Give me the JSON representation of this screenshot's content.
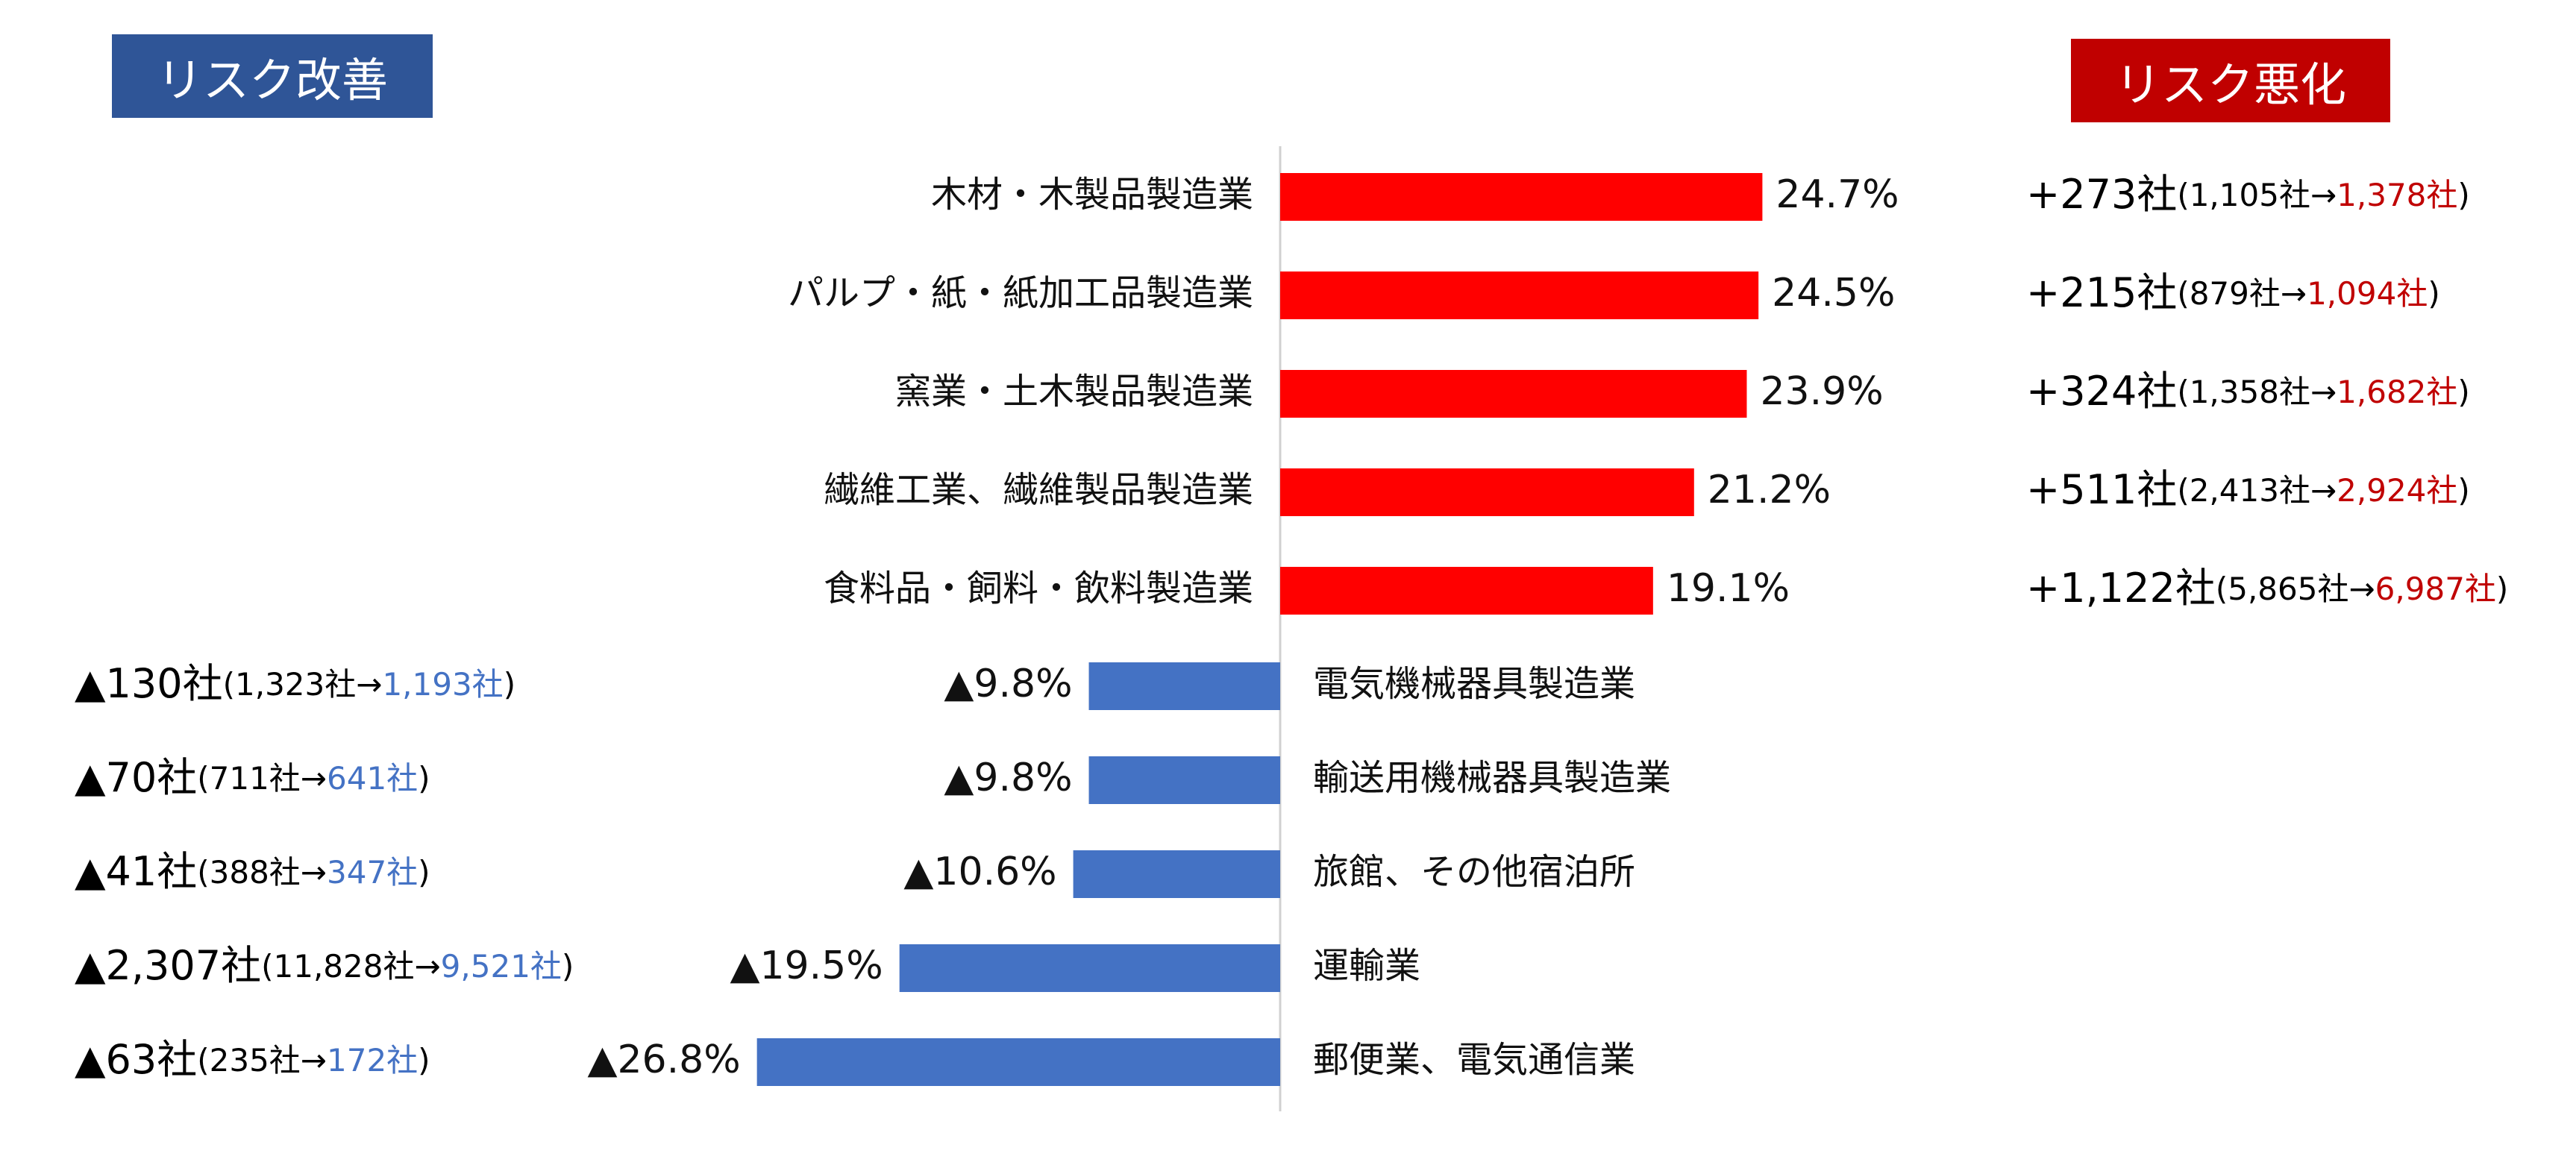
{
  "colors": {
    "worse": "#FF0000",
    "better": "#4472C4",
    "badge_worse": "#C00000",
    "badge_better": "#2F5597",
    "worse_text": "#C00000",
    "better_text": "#4472C4"
  },
  "badges": {
    "left": "リスク改善",
    "right": "リスク悪化"
  },
  "chart_data": {
    "type": "bar",
    "orientation": "horizontal-diverging",
    "unit": "%",
    "series": [
      {
        "name": "リスク悪化",
        "categories": [
          "木材・木製品製造業",
          "パルプ・紙・紙加工品製造業",
          "窯業・土木製品製造業",
          "繊維工業、繊維製品製造業",
          "食料品・飼料・飲料製造業"
        ],
        "values": [
          24.7,
          24.5,
          23.9,
          21.2,
          19.1
        ],
        "value_labels": [
          "24.7%",
          "24.5%",
          "23.9%",
          "21.2%",
          "19.1%"
        ],
        "annotations": [
          {
            "change": "+273社",
            "open": "(1,105社→",
            "to": "1,378社",
            "close": ")"
          },
          {
            "change": "+215社",
            "open": "(879社→",
            "to": "1,094社",
            "close": ")"
          },
          {
            "change": "+324社",
            "open": "(1,358社→",
            "to": "1,682社",
            "close": ")"
          },
          {
            "change": "+511社",
            "open": "(2,413社→",
            "to": "2,924社",
            "close": ")"
          },
          {
            "change": "+1,122社",
            "open": "(5,865社→",
            "to": "6,987社",
            "close": ")"
          }
        ]
      },
      {
        "name": "リスク改善",
        "categories": [
          "電気機械器具製造業",
          "輸送用機械器具製造業",
          "旅館、その他宿泊所",
          "運輸業",
          "郵便業、電気通信業"
        ],
        "values": [
          -9.8,
          -9.8,
          -10.6,
          -19.5,
          -26.8
        ],
        "value_labels": [
          "▲9.8%",
          "▲9.8%",
          "▲10.6%",
          "▲19.5%",
          "▲26.8%"
        ],
        "annotations": [
          {
            "change": "▲130社",
            "open": "(1,323社→",
            "to": "1,193社",
            "close": ")"
          },
          {
            "change": "▲70社",
            "open": "(711社→",
            "to": "641社",
            "close": ")"
          },
          {
            "change": "▲41社",
            "open": "(388社→",
            "to": "347社",
            "close": ")"
          },
          {
            "change": "▲2,307社",
            "open": "(11,828社→",
            "to": "9,521社",
            "close": ")"
          },
          {
            "change": "▲63社",
            "open": "(235社→",
            "to": "172社",
            "close": ")"
          }
        ]
      }
    ]
  }
}
